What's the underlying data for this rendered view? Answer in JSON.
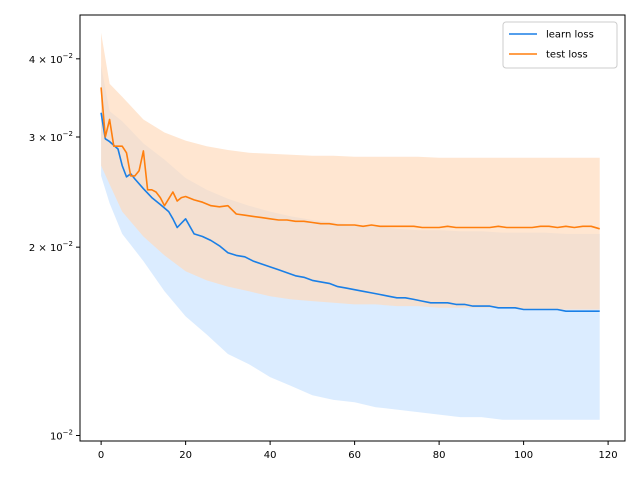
{
  "chart_data": {
    "type": "line",
    "title": "",
    "xlabel": "",
    "ylabel": "",
    "y_scale": "log",
    "xlim": [
      -5,
      124
    ],
    "ylim": [
      0.0098,
      0.047
    ],
    "x_ticks": [
      0,
      20,
      40,
      60,
      80,
      100,
      120
    ],
    "x_tick_labels": [
      "0",
      "20",
      "40",
      "60",
      "80",
      "100",
      "120"
    ],
    "y_ticks": [
      0.01,
      0.02,
      0.03,
      0.04
    ],
    "y_tick_labels": [
      {
        "base": "10",
        "exp": "−2",
        "mult": ""
      },
      {
        "base": "10",
        "exp": "−2",
        "mult": "2 × "
      },
      {
        "base": "10",
        "exp": "−2",
        "mult": "3 × "
      },
      {
        "base": "10",
        "exp": "−2",
        "mult": "4 × "
      }
    ],
    "grid": false,
    "legend_position": "top-right",
    "series": [
      {
        "name": "learn loss",
        "color": "#1a7fe6",
        "band_color": "#cce4ff",
        "mean": {
          "x": [
            0,
            1,
            2,
            4,
            5,
            6,
            7,
            8,
            10,
            12,
            14,
            16,
            17,
            18,
            20,
            22,
            24,
            26,
            28,
            30,
            32,
            34,
            36,
            38,
            40,
            42,
            44,
            46,
            48,
            50,
            52,
            54,
            56,
            58,
            60,
            62,
            64,
            66,
            68,
            70,
            72,
            74,
            76,
            78,
            80,
            82,
            84,
            86,
            88,
            90,
            92,
            94,
            96,
            98,
            100,
            102,
            104,
            106,
            108,
            110,
            112,
            114,
            116,
            118
          ],
          "y": [
            0.0328,
            0.0298,
            0.0295,
            0.0287,
            0.027,
            0.0259,
            0.0262,
            0.0257,
            0.0248,
            0.024,
            0.0234,
            0.0228,
            0.0222,
            0.0215,
            0.0222,
            0.021,
            0.0208,
            0.0205,
            0.0201,
            0.0196,
            0.0194,
            0.0193,
            0.019,
            0.0188,
            0.0186,
            0.0184,
            0.0182,
            0.018,
            0.0179,
            0.0177,
            0.0176,
            0.0175,
            0.0173,
            0.0172,
            0.0171,
            0.017,
            0.0169,
            0.0168,
            0.0167,
            0.0166,
            0.0166,
            0.0165,
            0.0164,
            0.0163,
            0.0163,
            0.0163,
            0.0162,
            0.0162,
            0.0161,
            0.0161,
            0.0161,
            0.016,
            0.016,
            0.016,
            0.0159,
            0.0159,
            0.0159,
            0.0159,
            0.0159,
            0.0158,
            0.0158,
            0.0158,
            0.0158,
            0.0158
          ]
        },
        "band": {
          "x": [
            0,
            2,
            5,
            10,
            15,
            20,
            25,
            30,
            35,
            40,
            45,
            50,
            55,
            60,
            65,
            70,
            75,
            80,
            85,
            90,
            95,
            100,
            105,
            110,
            115,
            118
          ],
          "upper": [
            0.039,
            0.033,
            0.0318,
            0.0293,
            0.0276,
            0.0258,
            0.0247,
            0.0239,
            0.0233,
            0.0228,
            0.0224,
            0.0221,
            0.0219,
            0.0217,
            0.0216,
            0.0214,
            0.0213,
            0.0213,
            0.0212,
            0.0212,
            0.0211,
            0.0211,
            0.0211,
            0.021,
            0.021,
            0.021
          ],
          "lower": [
            0.026,
            0.0235,
            0.021,
            0.019,
            0.017,
            0.0155,
            0.0145,
            0.0135,
            0.013,
            0.0124,
            0.012,
            0.0116,
            0.0114,
            0.0113,
            0.0111,
            0.011,
            0.0109,
            0.0108,
            0.0107,
            0.0107,
            0.0106,
            0.0106,
            0.0106,
            0.0106,
            0.0106,
            0.0106
          ]
        }
      },
      {
        "name": "test loss",
        "color": "#ff7f0e",
        "band_color": "#ffdcbd",
        "mean": {
          "x": [
            0,
            1,
            2,
            3,
            4,
            5,
            6,
            7,
            8,
            9,
            10,
            11,
            12,
            13,
            14,
            15,
            16,
            17,
            18,
            19,
            20,
            22,
            24,
            26,
            28,
            30,
            32,
            34,
            36,
            38,
            40,
            42,
            44,
            46,
            48,
            50,
            52,
            54,
            56,
            58,
            60,
            62,
            64,
            66,
            68,
            70,
            72,
            74,
            76,
            78,
            80,
            82,
            84,
            86,
            88,
            90,
            92,
            94,
            96,
            98,
            100,
            102,
            104,
            106,
            108,
            110,
            112,
            114,
            116,
            118
          ],
          "y": [
            0.036,
            0.03,
            0.032,
            0.029,
            0.029,
            0.029,
            0.0283,
            0.026,
            0.026,
            0.0265,
            0.0285,
            0.0247,
            0.0247,
            0.0245,
            0.024,
            0.0233,
            0.0239,
            0.0245,
            0.0237,
            0.024,
            0.0241,
            0.0238,
            0.0236,
            0.0233,
            0.0232,
            0.0233,
            0.0226,
            0.0225,
            0.0224,
            0.0223,
            0.0222,
            0.0221,
            0.0221,
            0.022,
            0.022,
            0.0219,
            0.0218,
            0.0218,
            0.0217,
            0.0217,
            0.0217,
            0.0216,
            0.0217,
            0.0216,
            0.0216,
            0.0216,
            0.0216,
            0.0216,
            0.0215,
            0.0215,
            0.0215,
            0.0216,
            0.0215,
            0.0215,
            0.0215,
            0.0215,
            0.0215,
            0.0216,
            0.0215,
            0.0215,
            0.0215,
            0.0215,
            0.0216,
            0.0216,
            0.0215,
            0.0216,
            0.0215,
            0.0216,
            0.0216,
            0.0214
          ]
        },
        "band": {
          "x": [
            0,
            2,
            5,
            10,
            15,
            20,
            25,
            30,
            35,
            40,
            45,
            50,
            55,
            60,
            65,
            70,
            75,
            80,
            85,
            90,
            95,
            100,
            105,
            110,
            115,
            118
          ],
          "upper": [
            0.044,
            0.0365,
            0.0348,
            0.032,
            0.0305,
            0.0296,
            0.029,
            0.0286,
            0.0283,
            0.0282,
            0.0281,
            0.028,
            0.028,
            0.0279,
            0.0279,
            0.0279,
            0.0279,
            0.0278,
            0.0278,
            0.0278,
            0.0278,
            0.0278,
            0.0278,
            0.0278,
            0.0278,
            0.0278
          ],
          "lower": [
            0.027,
            0.0252,
            0.0228,
            0.0208,
            0.0194,
            0.0183,
            0.0177,
            0.0173,
            0.017,
            0.0167,
            0.0165,
            0.0164,
            0.0163,
            0.0162,
            0.0162,
            0.0161,
            0.0161,
            0.016,
            0.016,
            0.016,
            0.016,
            0.0159,
            0.0159,
            0.0159,
            0.0159,
            0.0159
          ]
        }
      }
    ]
  }
}
